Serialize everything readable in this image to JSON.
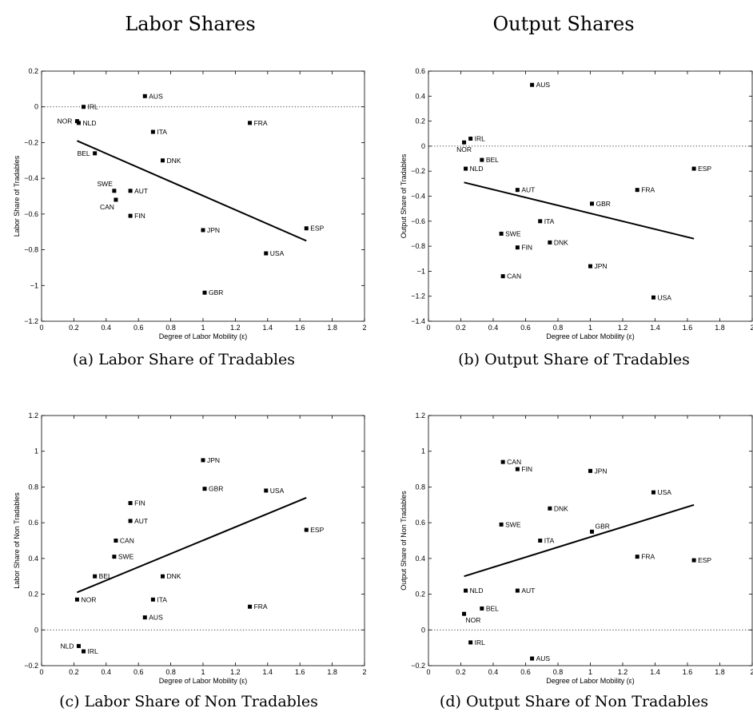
{
  "column_titles": [
    "Labor Shares",
    "Output Shares"
  ],
  "chart_data": [
    {
      "id": "a",
      "type": "scatter",
      "caption": "(a) Labor Share of Tradables",
      "xlabel": "Degree of Labor Mobility (ε)",
      "ylabel": "Labor Share of Tradables",
      "xlim": [
        0,
        2
      ],
      "ylim": [
        -1.2,
        0.2
      ],
      "xticks": [
        0,
        0.2,
        0.4,
        0.6,
        0.8,
        1,
        1.2,
        1.4,
        1.6,
        1.8,
        2
      ],
      "xtick_labels": [
        "0",
        "0.2",
        "0.4",
        "0.6",
        "0.8",
        "1",
        "1.2",
        "1.4",
        "1.6",
        "1.8",
        "2"
      ],
      "yticks": [
        -1.2,
        -1,
        -0.8,
        -0.6,
        -0.4,
        -0.2,
        0,
        0.2
      ],
      "ytick_labels": [
        "−1.2",
        "−1",
        "−0.8",
        "−0.6",
        "−0.4",
        "−0.2",
        "0",
        "0.2"
      ],
      "zero_line": true,
      "fit_line": [
        [
          0.22,
          -0.19
        ],
        [
          1.64,
          -0.75
        ]
      ],
      "points": [
        {
          "label": "AUS",
          "x": 0.64,
          "y": 0.06,
          "pos": "r"
        },
        {
          "label": "IRL",
          "x": 0.26,
          "y": 0.0,
          "pos": "r"
        },
        {
          "label": "NOR",
          "x": 0.22,
          "y": -0.08,
          "pos": "l"
        },
        {
          "label": "NLD",
          "x": 0.23,
          "y": -0.09,
          "pos": "r"
        },
        {
          "label": "FRA",
          "x": 1.29,
          "y": -0.09,
          "pos": "r"
        },
        {
          "label": "ITA",
          "x": 0.69,
          "y": -0.14,
          "pos": "r"
        },
        {
          "label": "BEL",
          "x": 0.33,
          "y": -0.26,
          "pos": "l"
        },
        {
          "label": "DNK",
          "x": 0.75,
          "y": -0.3,
          "pos": "r"
        },
        {
          "label": "SWE",
          "x": 0.45,
          "y": -0.47,
          "pos": "ul"
        },
        {
          "label": "AUT",
          "x": 0.55,
          "y": -0.47,
          "pos": "r"
        },
        {
          "label": "CAN",
          "x": 0.46,
          "y": -0.52,
          "pos": "bl"
        },
        {
          "label": "FIN",
          "x": 0.55,
          "y": -0.61,
          "pos": "r"
        },
        {
          "label": "ESP",
          "x": 1.64,
          "y": -0.68,
          "pos": "r"
        },
        {
          "label": "JPN",
          "x": 1.0,
          "y": -0.69,
          "pos": "r"
        },
        {
          "label": "USA",
          "x": 1.39,
          "y": -0.82,
          "pos": "r"
        },
        {
          "label": "GBR",
          "x": 1.01,
          "y": -1.04,
          "pos": "r"
        }
      ]
    },
    {
      "id": "b",
      "type": "scatter",
      "caption": "(b) Output Share of Tradables",
      "xlabel": "Degree of Labor Mobility (ε)",
      "ylabel": "Output Share of Tradables",
      "xlim": [
        0,
        2
      ],
      "ylim": [
        -1.4,
        0.6
      ],
      "xticks": [
        0,
        0.2,
        0.4,
        0.6,
        0.8,
        1,
        1.2,
        1.4,
        1.6,
        1.8,
        2
      ],
      "xtick_labels": [
        "0",
        "0.2",
        "0.4",
        "0.6",
        "0.8",
        "1",
        "1.2",
        "1.4",
        "1.6",
        "1.8",
        "2"
      ],
      "yticks": [
        -1.4,
        -1.2,
        -1,
        -0.8,
        -0.6,
        -0.4,
        -0.2,
        0,
        0.2,
        0.4,
        0.6
      ],
      "ytick_labels": [
        "−1.4",
        "−1.2",
        "−1",
        "−0.8",
        "−0.6",
        "−0.4",
        "−0.2",
        "0",
        "0.2",
        "0.4",
        "0.6"
      ],
      "zero_line": true,
      "fit_line": [
        [
          0.22,
          -0.29
        ],
        [
          1.64,
          -0.74
        ]
      ],
      "points": [
        {
          "label": "AUS",
          "x": 0.64,
          "y": 0.49,
          "pos": "r"
        },
        {
          "label": "IRL",
          "x": 0.26,
          "y": 0.06,
          "pos": "r"
        },
        {
          "label": "NOR",
          "x": 0.22,
          "y": 0.03,
          "pos": "b"
        },
        {
          "label": "BEL",
          "x": 0.33,
          "y": -0.11,
          "pos": "r"
        },
        {
          "label": "NLD",
          "x": 0.23,
          "y": -0.18,
          "pos": "r"
        },
        {
          "label": "ESP",
          "x": 1.64,
          "y": -0.18,
          "pos": "r"
        },
        {
          "label": "AUT",
          "x": 0.55,
          "y": -0.35,
          "pos": "r"
        },
        {
          "label": "FRA",
          "x": 1.29,
          "y": -0.35,
          "pos": "r"
        },
        {
          "label": "GBR",
          "x": 1.01,
          "y": -0.46,
          "pos": "r"
        },
        {
          "label": "ITA",
          "x": 0.69,
          "y": -0.6,
          "pos": "r"
        },
        {
          "label": "SWE",
          "x": 0.45,
          "y": -0.7,
          "pos": "r"
        },
        {
          "label": "DNK",
          "x": 0.75,
          "y": -0.77,
          "pos": "r"
        },
        {
          "label": "FIN",
          "x": 0.55,
          "y": -0.81,
          "pos": "r"
        },
        {
          "label": "JPN",
          "x": 1.0,
          "y": -0.96,
          "pos": "r"
        },
        {
          "label": "CAN",
          "x": 0.46,
          "y": -1.04,
          "pos": "r"
        },
        {
          "label": "USA",
          "x": 1.39,
          "y": -1.21,
          "pos": "r"
        }
      ]
    },
    {
      "id": "c",
      "type": "scatter",
      "caption": "(c) Labor Share of Non Tradables",
      "xlabel": "Degree of Labor Mobility (ε)",
      "ylabel": "Labor Share of Non Tradables",
      "xlim": [
        0,
        2
      ],
      "ylim": [
        -0.2,
        1.2
      ],
      "xticks": [
        0,
        0.2,
        0.4,
        0.6,
        0.8,
        1,
        1.2,
        1.4,
        1.6,
        1.8,
        2
      ],
      "xtick_labels": [
        "0",
        "0.2",
        "0.4",
        "0.6",
        "0.8",
        "1",
        "1.2",
        "1.4",
        "1.6",
        "1.8",
        "2"
      ],
      "yticks": [
        -0.2,
        0,
        0.2,
        0.4,
        0.6,
        0.8,
        1,
        1.2
      ],
      "ytick_labels": [
        "−0.2",
        "0",
        "0.2",
        "0.4",
        "0.6",
        "0.8",
        "1",
        "1.2"
      ],
      "zero_line": true,
      "fit_line": [
        [
          0.22,
          0.21
        ],
        [
          1.64,
          0.74
        ]
      ],
      "points": [
        {
          "label": "JPN",
          "x": 1.0,
          "y": 0.95,
          "pos": "r"
        },
        {
          "label": "GBR",
          "x": 1.01,
          "y": 0.79,
          "pos": "r"
        },
        {
          "label": "USA",
          "x": 1.39,
          "y": 0.78,
          "pos": "r"
        },
        {
          "label": "FIN",
          "x": 0.55,
          "y": 0.71,
          "pos": "r"
        },
        {
          "label": "AUT",
          "x": 0.55,
          "y": 0.61,
          "pos": "r"
        },
        {
          "label": "ESP",
          "x": 1.64,
          "y": 0.56,
          "pos": "r"
        },
        {
          "label": "CAN",
          "x": 0.46,
          "y": 0.5,
          "pos": "r"
        },
        {
          "label": "SWE",
          "x": 0.45,
          "y": 0.41,
          "pos": "r"
        },
        {
          "label": "BEL",
          "x": 0.33,
          "y": 0.3,
          "pos": "r"
        },
        {
          "label": "DNK",
          "x": 0.75,
          "y": 0.3,
          "pos": "r"
        },
        {
          "label": "ITA",
          "x": 0.69,
          "y": 0.17,
          "pos": "r"
        },
        {
          "label": "NOR",
          "x": 0.22,
          "y": 0.17,
          "pos": "r"
        },
        {
          "label": "FRA",
          "x": 1.29,
          "y": 0.13,
          "pos": "r"
        },
        {
          "label": "AUS",
          "x": 0.64,
          "y": 0.07,
          "pos": "r"
        },
        {
          "label": "NLD",
          "x": 0.23,
          "y": -0.09,
          "pos": "l"
        },
        {
          "label": "IRL",
          "x": 0.26,
          "y": -0.12,
          "pos": "r"
        }
      ]
    },
    {
      "id": "d",
      "type": "scatter",
      "caption": "(d) Output Share of Non Tradables",
      "xlabel": "Degree of Labor Mobility (ε)",
      "ylabel": "Output Share of Non Tradables",
      "xlim": [
        0,
        2
      ],
      "ylim": [
        -0.2,
        1.2
      ],
      "xticks": [
        0,
        0.2,
        0.4,
        0.6,
        0.8,
        1,
        1.2,
        1.4,
        1.6,
        1.8,
        2
      ],
      "xtick_labels": [
        "0",
        "0.2",
        "0.4",
        "0.6",
        "0.8",
        "1",
        "1.2",
        "1.4",
        "1.6",
        "1.8",
        "2"
      ],
      "yticks": [
        -0.2,
        0,
        0.2,
        0.4,
        0.6,
        0.8,
        1,
        1.2
      ],
      "ytick_labels": [
        "−0.2",
        "0",
        "0.2",
        "0.4",
        "0.6",
        "0.8",
        "1",
        "1.2"
      ],
      "zero_line": true,
      "fit_line": [
        [
          0.22,
          0.3
        ],
        [
          1.64,
          0.7
        ]
      ],
      "points": [
        {
          "label": "CAN",
          "x": 0.46,
          "y": 0.94,
          "pos": "r"
        },
        {
          "label": "FIN",
          "x": 0.55,
          "y": 0.9,
          "pos": "r"
        },
        {
          "label": "JPN",
          "x": 1.0,
          "y": 0.89,
          "pos": "r"
        },
        {
          "label": "USA",
          "x": 1.39,
          "y": 0.77,
          "pos": "r"
        },
        {
          "label": "DNK",
          "x": 0.75,
          "y": 0.68,
          "pos": "r"
        },
        {
          "label": "SWE",
          "x": 0.45,
          "y": 0.59,
          "pos": "r"
        },
        {
          "label": "GBR",
          "x": 1.01,
          "y": 0.55,
          "pos": "ur"
        },
        {
          "label": "ITA",
          "x": 0.69,
          "y": 0.5,
          "pos": "r"
        },
        {
          "label": "FRA",
          "x": 1.29,
          "y": 0.41,
          "pos": "r"
        },
        {
          "label": "ESP",
          "x": 1.64,
          "y": 0.39,
          "pos": "r"
        },
        {
          "label": "NLD",
          "x": 0.23,
          "y": 0.22,
          "pos": "r"
        },
        {
          "label": "AUT",
          "x": 0.55,
          "y": 0.22,
          "pos": "r"
        },
        {
          "label": "BEL",
          "x": 0.33,
          "y": 0.12,
          "pos": "r"
        },
        {
          "label": "NOR",
          "x": 0.22,
          "y": 0.09,
          "pos": "br"
        },
        {
          "label": "IRL",
          "x": 0.26,
          "y": -0.07,
          "pos": "r"
        },
        {
          "label": "AUS",
          "x": 0.64,
          "y": -0.16,
          "pos": "r"
        }
      ]
    }
  ]
}
